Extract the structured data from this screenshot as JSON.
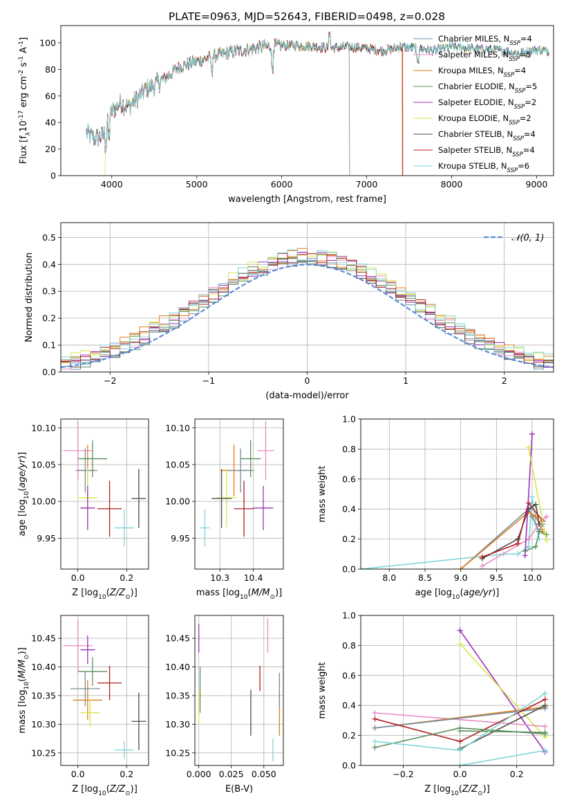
{
  "figure_title": "PLATE=0963, MJD=52643, FIBERID=0498, z=0.028",
  "colors": {
    "Chabrier MILES": "#6f8ea0",
    "Salpeter MILES": "#e78ac3",
    "Kroupa MILES": "#e07b1a",
    "Chabrier ELODIE": "#5a8f5a",
    "Salpeter ELODIE": "#9a2fb5",
    "Kroupa ELODIE": "#d6e64a",
    "Chabrier STELIB": "#4a4a4a",
    "Salpeter STELIB": "#b01c1c",
    "Kroupa STELIB": "#80d4d8",
    "normal_curve": "#5b8bd6"
  },
  "chart_data": [
    {
      "id": "spectrum",
      "type": "line",
      "xlabel": "wavelength [Angstrom, rest frame]",
      "ylabel": "Flux [f$_\\lambda$10$^{-17}$ erg cm$^{-2}$ s$^{-1}$ A$^{-1}$]",
      "xlim": [
        3400,
        9200
      ],
      "ylim": [
        0,
        113
      ],
      "xticks": [
        4000,
        5000,
        6000,
        7000,
        8000,
        9000
      ],
      "yticks": [
        0,
        20,
        40,
        60,
        80,
        100
      ],
      "grid": false,
      "legend_position": "top-right",
      "legend": [
        {
          "label": "Chabrier MILES, N",
          "sub": "SSP",
          "suffix": "=4"
        },
        {
          "label": "Salpeter MILES, N",
          "sub": "SSP",
          "suffix": "=5"
        },
        {
          "label": "Kroupa MILES, N",
          "sub": "SSP",
          "suffix": "=4"
        },
        {
          "label": "Chabrier ELODIE, N",
          "sub": "SSP",
          "suffix": "=5"
        },
        {
          "label": "Salpeter ELODIE, N",
          "sub": "SSP",
          "suffix": "=2"
        },
        {
          "label": "Kroupa ELODIE, N",
          "sub": "SSP",
          "suffix": "=2"
        },
        {
          "label": "Chabrier STELIB, N",
          "sub": "SSP",
          "suffix": "=4"
        },
        {
          "label": "Salpeter STELIB, N",
          "sub": "SSP",
          "suffix": "=4"
        },
        {
          "label": "Kroupa STELIB, N",
          "sub": "SSP",
          "suffix": "=6"
        }
      ],
      "continuum_x": [
        3700,
        3800,
        3900,
        4000,
        4100,
        4200,
        4300,
        4400,
        4500,
        4600,
        4800,
        5000,
        5200,
        5400,
        5600,
        5800,
        6000,
        6200,
        6400,
        6600,
        6800,
        7000,
        7200,
        7400,
        7600,
        7800,
        8000,
        8200,
        8400,
        8600,
        8800,
        9000,
        9100
      ],
      "continuum_y": [
        32,
        28,
        30,
        48,
        55,
        52,
        58,
        65,
        68,
        72,
        82,
        86,
        90,
        93,
        95,
        97,
        98,
        98,
        97,
        96,
        97,
        96,
        94,
        97,
        96,
        94,
        97,
        96,
        95,
        94,
        92,
        95,
        94
      ],
      "model_drops": [
        {
          "series": "Kroupa ELODIE",
          "x": 3920
        },
        {
          "series": "Kroupa MILES",
          "x": 7420
        },
        {
          "series": "Salpeter STELIB",
          "x": 7425
        },
        {
          "series": "Chabrier ELODIE",
          "x": 6800
        }
      ]
    },
    {
      "id": "residuals",
      "type": "histogram",
      "xlabel": "(data-model)/error",
      "ylabel": "Normed distribution",
      "xlim": [
        -2.5,
        2.5
      ],
      "ylim": [
        0,
        0.555
      ],
      "xticks": [
        -2,
        -1,
        0,
        1,
        2
      ],
      "yticks": [
        0.0,
        0.1,
        0.2,
        0.3,
        0.4,
        0.5
      ],
      "grid": true,
      "legend_position": "top-right",
      "legend": [
        "𝒩(0, 1)"
      ],
      "bin_width": 0.1,
      "envelope": [
        0.025,
        0.027,
        0.03,
        0.033,
        0.037,
        0.042,
        0.048,
        0.055,
        0.063,
        0.072,
        0.083,
        0.095,
        0.108,
        0.122,
        0.138,
        0.155,
        0.173,
        0.192,
        0.212,
        0.233,
        0.255,
        0.277,
        0.3,
        0.323,
        0.346,
        0.368,
        0.39,
        0.41,
        0.43,
        0.447,
        0.462,
        0.475,
        0.485,
        0.492,
        0.496,
        0.498,
        0.497,
        0.493,
        0.486,
        0.476,
        0.464,
        0.449,
        0.432,
        0.412,
        0.392,
        0.37,
        0.347,
        0.323,
        0.3,
        0.276,
        0.253,
        0.23,
        0.208,
        0.187,
        0.167,
        0.148,
        0.131,
        0.115,
        0.1,
        0.087,
        0.075,
        0.064,
        0.055,
        0.047,
        0.04,
        0.034,
        0.029,
        0.025,
        0.021,
        0.018,
        0.016,
        0.014,
        0.012,
        0.011,
        0.01,
        0.009,
        0.008,
        0.008,
        0.007,
        0.007,
        0.006,
        0.006,
        0.006,
        0.005,
        0.005,
        0.005,
        0.005,
        0.005,
        0.005,
        0.005,
        0.005,
        0.005,
        0.005,
        0.005,
        0.005,
        0.005,
        0.005,
        0.005,
        0.005,
        0.005
      ],
      "normal_curve": {
        "mu": 0,
        "sigma": 1
      }
    },
    {
      "id": "age_vs_Z",
      "type": "scatter-errorbar",
      "xlabel": "Z [log$_{10}$($Z/Z_\\odot$)]",
      "ylabel": "age  [log$_{10}$($age/yr$)]",
      "xlim": [
        -0.07,
        0.29
      ],
      "ylim": [
        9.908,
        10.112
      ],
      "xticks": [
        0.0,
        0.2
      ],
      "yticks": [
        9.95,
        10.0,
        10.05,
        10.1
      ],
      "grid": true,
      "points": [
        {
          "series": "Salpeter MILES",
          "x": 0.0,
          "y": 10.069,
          "xerr": 0.06,
          "yerr": 0.04
        },
        {
          "series": "Kroupa MILES",
          "x": 0.04,
          "y": 10.042,
          "xerr": 0.04,
          "yerr": 0.035
        },
        {
          "series": "Chabrier MILES",
          "x": 0.03,
          "y": 10.042,
          "xerr": 0.04,
          "yerr": 0.03
        },
        {
          "series": "Chabrier ELODIE",
          "x": 0.06,
          "y": 10.058,
          "xerr": 0.06,
          "yerr": 0.025
        },
        {
          "series": "Kroupa ELODIE",
          "x": 0.04,
          "y": 10.005,
          "xerr": 0.04,
          "yerr": 0.04
        },
        {
          "series": "Salpeter ELODIE",
          "x": 0.04,
          "y": 9.991,
          "xerr": 0.03,
          "yerr": 0.03
        },
        {
          "series": "Salpeter STELIB",
          "x": 0.13,
          "y": 9.99,
          "xerr": 0.05,
          "yerr": 0.038
        },
        {
          "series": "Kroupa STELIB",
          "x": 0.19,
          "y": 9.964,
          "xerr": 0.04,
          "yerr": 0.025
        },
        {
          "series": "Chabrier STELIB",
          "x": 0.25,
          "y": 10.004,
          "xerr": 0.03,
          "yerr": 0.04
        }
      ]
    },
    {
      "id": "age_vs_mass",
      "type": "scatter-errorbar",
      "xlabel": "mass [log$_{10}$($M/M_\\odot$)]",
      "ylabel": "",
      "xlim": [
        10.225,
        10.49
      ],
      "ylim": [
        9.908,
        10.112
      ],
      "xticks": [
        10.3,
        10.4
      ],
      "yticks": [
        9.95,
        10.0,
        10.05,
        10.1
      ],
      "grid": true,
      "points": [
        {
          "series": "Salpeter MILES",
          "x": 10.437,
          "y": 10.069,
          "xerr": 0.025,
          "yerr": 0.04
        },
        {
          "series": "Kroupa MILES",
          "x": 10.342,
          "y": 10.042,
          "xerr": 0.04,
          "yerr": 0.035
        },
        {
          "series": "Chabrier MILES",
          "x": 10.362,
          "y": 10.042,
          "xerr": 0.04,
          "yerr": 0.03
        },
        {
          "series": "Chabrier ELODIE",
          "x": 10.392,
          "y": 10.058,
          "xerr": 0.03,
          "yerr": 0.025
        },
        {
          "series": "Kroupa ELODIE",
          "x": 10.32,
          "y": 10.005,
          "xerr": 0.03,
          "yerr": 0.04
        },
        {
          "series": "Salpeter ELODIE",
          "x": 10.43,
          "y": 9.991,
          "xerr": 0.03,
          "yerr": 0.03
        },
        {
          "series": "Salpeter STELIB",
          "x": 10.372,
          "y": 9.99,
          "xerr": 0.03,
          "yerr": 0.038
        },
        {
          "series": "Kroupa STELIB",
          "x": 10.255,
          "y": 9.964,
          "xerr": 0.015,
          "yerr": 0.025
        },
        {
          "series": "Chabrier STELIB",
          "x": 10.305,
          "y": 10.004,
          "xerr": 0.03,
          "yerr": 0.04
        }
      ]
    },
    {
      "id": "weight_vs_age",
      "type": "line",
      "xlabel": "age  [log$_{10}$($age/yr$)]",
      "ylabel": "mass weight",
      "xlim": [
        7.6,
        10.3
      ],
      "ylim": [
        0,
        1.0
      ],
      "xticks": [
        8.0,
        8.5,
        9.0,
        9.5,
        10.0
      ],
      "yticks": [
        0.0,
        0.2,
        0.4,
        0.6,
        0.8,
        1.0
      ],
      "grid": true,
      "series": [
        {
          "name": "Kroupa STELIB",
          "x": [
            7.6,
            9.6,
            9.8,
            9.95,
            10.0,
            10.05,
            10.1
          ],
          "y": [
            0.0,
            0.1,
            0.1,
            0.15,
            0.48,
            0.3,
            0.2
          ]
        },
        {
          "name": "Chabrier MILES",
          "x": [
            9.0,
            9.95,
            10.0,
            10.1,
            10.15
          ],
          "y": [
            0.0,
            0.4,
            0.35,
            0.25,
            0.3
          ]
        },
        {
          "name": "Kroupa MILES",
          "x": [
            9.0,
            9.95,
            10.05,
            10.15
          ],
          "y": [
            0.0,
            0.38,
            0.35,
            0.25
          ]
        },
        {
          "name": "Salpeter MILES",
          "x": [
            9.3,
            9.95,
            10.1,
            10.2
          ],
          "y": [
            0.02,
            0.2,
            0.3,
            0.35
          ]
        },
        {
          "name": "Chabrier STELIB",
          "x": [
            9.3,
            9.8,
            9.95,
            10.05,
            10.1
          ],
          "y": [
            0.07,
            0.2,
            0.4,
            0.43,
            0.3
          ]
        },
        {
          "name": "Salpeter STELIB",
          "x": [
            9.3,
            9.8,
            9.95,
            10.15
          ],
          "y": [
            0.08,
            0.17,
            0.44,
            0.32
          ]
        },
        {
          "name": "Chabrier ELODIE",
          "x": [
            9.9,
            10.05,
            10.1,
            10.2
          ],
          "y": [
            0.12,
            0.15,
            0.25,
            0.23
          ]
        },
        {
          "name": "Salpeter ELODIE",
          "x": [
            9.9,
            10.0
          ],
          "y": [
            0.09,
            0.9
          ]
        },
        {
          "name": "Kroupa ELODIE",
          "x": [
            9.95,
            10.2
          ],
          "y": [
            0.81,
            0.19
          ]
        }
      ]
    },
    {
      "id": "mass_vs_Z",
      "type": "scatter-errorbar",
      "xlabel": "Z [log$_{10}$($Z/Z_\\odot$)]",
      "ylabel": "mass [log$_{10}$($M/M_\\odot$)]",
      "xlim": [
        -0.07,
        0.29
      ],
      "ylim": [
        10.228,
        10.49
      ],
      "xticks": [
        0.0,
        0.2
      ],
      "yticks": [
        10.25,
        10.3,
        10.35,
        10.4,
        10.45
      ],
      "grid": true,
      "points": [
        {
          "series": "Salpeter MILES",
          "x": 0.0,
          "y": 10.437,
          "xerr": 0.06,
          "yerr": 0.045
        },
        {
          "series": "Salpeter ELODIE",
          "x": 0.04,
          "y": 10.43,
          "xerr": 0.03,
          "yerr": 0.025
        },
        {
          "series": "Chabrier ELODIE",
          "x": 0.06,
          "y": 10.392,
          "xerr": 0.06,
          "yerr": 0.025
        },
        {
          "series": "Salpeter STELIB",
          "x": 0.13,
          "y": 10.372,
          "xerr": 0.05,
          "yerr": 0.03
        },
        {
          "series": "Chabrier MILES",
          "x": 0.03,
          "y": 10.362,
          "xerr": 0.06,
          "yerr": 0.03
        },
        {
          "series": "Kroupa MILES",
          "x": 0.04,
          "y": 10.342,
          "xerr": 0.06,
          "yerr": 0.035
        },
        {
          "series": "Kroupa ELODIE",
          "x": 0.05,
          "y": 10.32,
          "xerr": 0.04,
          "yerr": 0.025
        },
        {
          "series": "Chabrier STELIB",
          "x": 0.25,
          "y": 10.305,
          "xerr": 0.03,
          "yerr": 0.05
        },
        {
          "series": "Kroupa STELIB",
          "x": 0.19,
          "y": 10.255,
          "xerr": 0.04,
          "yerr": 0.015
        }
      ]
    },
    {
      "id": "mass_vs_ebv",
      "type": "scatter-errorbar",
      "xlabel": "E(B-V)",
      "ylabel": "",
      "xlim": [
        -0.003,
        0.065
      ],
      "ylim": [
        10.228,
        10.49
      ],
      "xticks": [
        0.0,
        0.025,
        0.05
      ],
      "yticks": [
        10.25,
        10.3,
        10.35,
        10.4,
        10.45
      ],
      "grid": true,
      "points": [
        {
          "series": "Salpeter ELODIE",
          "x": 0.0,
          "y": 10.45,
          "xerr": 0,
          "yerr": 0.025
        },
        {
          "series": "Kroupa ELODIE",
          "x": 0.0,
          "y": 10.33,
          "xerr": 0,
          "yerr": 0.03
        },
        {
          "series": "Chabrier ELODIE",
          "x": 0.001,
          "y": 10.36,
          "xerr": 0,
          "yerr": 0.04
        },
        {
          "series": "Chabrier STELIB",
          "x": 0.04,
          "y": 10.32,
          "xerr": 0,
          "yerr": 0.04
        },
        {
          "series": "Salpeter STELIB",
          "x": 0.047,
          "y": 10.38,
          "xerr": 0,
          "yerr": 0.022
        },
        {
          "series": "Salpeter MILES",
          "x": 0.053,
          "y": 10.455,
          "xerr": 0,
          "yerr": 0.03
        },
        {
          "series": "Kroupa STELIB",
          "x": 0.057,
          "y": 10.255,
          "xerr": 0,
          "yerr": 0.02
        },
        {
          "series": "Kroupa MILES",
          "x": 0.062,
          "y": 10.32,
          "xerr": 0,
          "yerr": 0.04
        },
        {
          "series": "Chabrier MILES",
          "x": 0.062,
          "y": 10.36,
          "xerr": 0,
          "yerr": 0.03
        }
      ]
    },
    {
      "id": "weight_vs_Z",
      "type": "line",
      "xlabel": "Z [log$_{10}$($Z/Z_\\odot$)]",
      "ylabel": "mass weight",
      "xlim": [
        -0.35,
        0.33
      ],
      "ylim": [
        0,
        1.0
      ],
      "xticks": [
        -0.2,
        0.0,
        0.2
      ],
      "yticks": [
        0.0,
        0.2,
        0.4,
        0.6,
        0.8,
        1.0
      ],
      "grid": true,
      "series": [
        {
          "name": "Salpeter ELODIE",
          "x": [
            0.0,
            0.3
          ],
          "y": [
            0.9,
            0.09
          ]
        },
        {
          "name": "Kroupa ELODIE",
          "x": [
            0.0,
            0.3
          ],
          "y": [
            0.81,
            0.19
          ]
        },
        {
          "name": "Salpeter MILES",
          "x": [
            -0.3,
            0.3
          ],
          "y": [
            0.35,
            0.26
          ]
        },
        {
          "name": "Kroupa MILES",
          "x": [
            -0.3,
            0.3
          ],
          "y": [
            0.25,
            0.39
          ]
        },
        {
          "name": "Chabrier MILES",
          "x": [
            -0.3,
            0.3
          ],
          "y": [
            0.25,
            0.38
          ]
        },
        {
          "name": "Salpeter STELIB",
          "x": [
            -0.3,
            0.0,
            0.3
          ],
          "y": [
            0.31,
            0.16,
            0.44
          ]
        },
        {
          "name": "Chabrier STELIB",
          "x": [
            0.0,
            0.3
          ],
          "y": [
            0.11,
            0.4
          ]
        },
        {
          "name": "Chabrier ELODIE",
          "x": [
            -0.3,
            0.0,
            0.3
          ],
          "y": [
            0.12,
            0.25,
            0.21
          ]
        },
        {
          "name": "Chabrier ELODIE",
          "x": [
            0.0,
            0.3
          ],
          "y": [
            0.23,
            0.22
          ]
        },
        {
          "name": "Kroupa STELIB",
          "x": [
            -0.3,
            0.0,
            0.3
          ],
          "y": [
            0.16,
            0.1,
            0.48
          ]
        },
        {
          "name": "Kroupa STELIB",
          "x": [
            0.0,
            0.3
          ],
          "y": [
            0.0,
            0.1
          ]
        }
      ]
    }
  ]
}
